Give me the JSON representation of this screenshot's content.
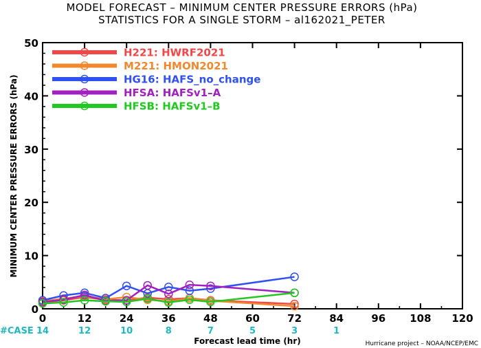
{
  "chart_data": {
    "type": "line",
    "title_line1": "MODEL FORECAST – MINIMUM CENTER PRESSURE ERRORS (hPa)",
    "title_line2": "STATISTICS FOR A SINGLE STORM – al162021_PETER",
    "xlabel": "Forecast lead time (hr)",
    "ylabel": "MINIMUM CENTER PRESSURE ERRORS (hPa)",
    "xlim": [
      0,
      120
    ],
    "ylim": [
      0,
      50
    ],
    "x_ticks": [
      0,
      12,
      24,
      36,
      48,
      60,
      72,
      84,
      96,
      108,
      120
    ],
    "y_ticks": [
      0,
      10,
      20,
      30,
      40,
      50
    ],
    "grid": false,
    "legend_position": "top-left",
    "case_label": "#CASE",
    "case_counts": [
      {
        "x": 0,
        "n": "14"
      },
      {
        "x": 12,
        "n": "12"
      },
      {
        "x": 24,
        "n": "10"
      },
      {
        "x": 36,
        "n": "8"
      },
      {
        "x": 48,
        "n": "7"
      },
      {
        "x": 60,
        "n": "5"
      },
      {
        "x": 72,
        "n": "3"
      },
      {
        "x": 84,
        "n": "1"
      }
    ],
    "case_color": "#20b8c0",
    "series": [
      {
        "name": "H221: HWRF2021",
        "color": "#f04848",
        "x": [
          0,
          6,
          12,
          18,
          24,
          30,
          36,
          42,
          48,
          72
        ],
        "values": [
          1.2,
          1.6,
          2.2,
          1.7,
          1.6,
          2.1,
          1.8,
          2.0,
          1.6,
          0.9
        ]
      },
      {
        "name": "M221: HMON2021",
        "color": "#f08830",
        "x": [
          0,
          6,
          12,
          18,
          24,
          30,
          36,
          42,
          48,
          72
        ],
        "values": [
          1.4,
          1.9,
          2.4,
          1.8,
          2.2,
          1.7,
          1.4,
          2.0,
          1.5,
          0.5
        ]
      },
      {
        "name": "HG16: HAFS_no_change",
        "color": "#3050f0",
        "x": [
          0,
          6,
          12,
          18,
          24,
          30,
          36,
          42,
          48,
          72
        ],
        "values": [
          1.6,
          2.5,
          3.0,
          2.0,
          4.3,
          2.9,
          4.1,
          3.4,
          3.8,
          6.0
        ]
      },
      {
        "name": "HFSA: HAFSv1–A",
        "color": "#a020c0",
        "x": [
          0,
          6,
          12,
          18,
          24,
          30,
          36,
          42,
          48,
          72
        ],
        "values": [
          1.3,
          1.7,
          2.6,
          1.5,
          1.6,
          4.4,
          2.8,
          4.5,
          4.3,
          3.0
        ]
      },
      {
        "name": "HFSB: HAFSv1–B",
        "color": "#20c820",
        "x": [
          0,
          6,
          12,
          18,
          24,
          30,
          36,
          42,
          48,
          72
        ],
        "values": [
          1.0,
          1.2,
          1.6,
          1.4,
          1.3,
          1.9,
          1.2,
          1.7,
          1.3,
          3.0
        ]
      }
    ]
  },
  "credit": "Hurricane project – NOAA/NCEP/EMC"
}
